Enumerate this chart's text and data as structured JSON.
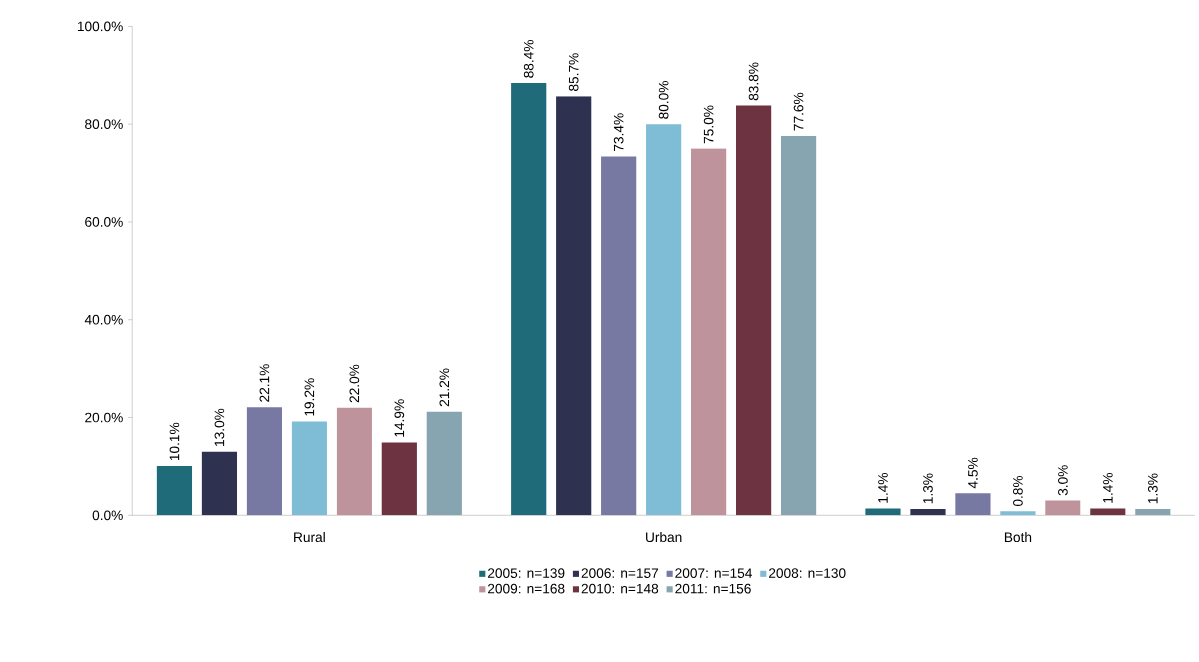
{
  "chart_data": {
    "type": "bar",
    "categories": [
      "Rural",
      "Urban",
      "Both"
    ],
    "series": [
      {
        "name": "2005: n=139",
        "color": "#1f6b7a",
        "values": [
          10.1,
          88.4,
          1.4
        ],
        "value_labels": [
          "10.1%",
          "88.4%",
          "1.4%"
        ]
      },
      {
        "name": "2006: n=157",
        "color": "#2e3150",
        "values": [
          13.0,
          85.7,
          1.3
        ],
        "value_labels": [
          "13.0%",
          "85.7%",
          "1.3%"
        ]
      },
      {
        "name": "2007: n=154",
        "color": "#7779a3",
        "values": [
          22.1,
          73.4,
          4.5
        ],
        "value_labels": [
          "22.1%",
          "73.4%",
          "4.5%"
        ]
      },
      {
        "name": "2008: n=130",
        "color": "#7fbcd6",
        "values": [
          19.2,
          80.0,
          0.8
        ],
        "value_labels": [
          "19.2%",
          "80.0%",
          "0.8%"
        ]
      },
      {
        "name": "2009: n=168",
        "color": "#bf939b",
        "values": [
          22.0,
          75.0,
          3.0
        ],
        "value_labels": [
          "22.0%",
          "75.0%",
          "3.0%"
        ]
      },
      {
        "name": "2010: n=148",
        "color": "#6d3340",
        "values": [
          14.9,
          83.8,
          1.4
        ],
        "value_labels": [
          "14.9%",
          "83.8%",
          "1.4%"
        ]
      },
      {
        "name": "2011: n=156",
        "color": "#87a5b0",
        "values": [
          21.2,
          77.6,
          1.3
        ],
        "value_labels": [
          "21.2%",
          "77.6%",
          "1.3%"
        ]
      }
    ],
    "ylim": [
      0,
      100
    ],
    "yticks": [
      {
        "value": 0,
        "label": "0.0%"
      },
      {
        "value": 20,
        "label": "20.0%"
      },
      {
        "value": 40,
        "label": "40.0%"
      },
      {
        "value": 60,
        "label": "60.0%"
      },
      {
        "value": 80,
        "label": "80.0%"
      },
      {
        "value": 100,
        "label": "100.0%"
      }
    ],
    "grid": false,
    "legend": "bottom"
  }
}
